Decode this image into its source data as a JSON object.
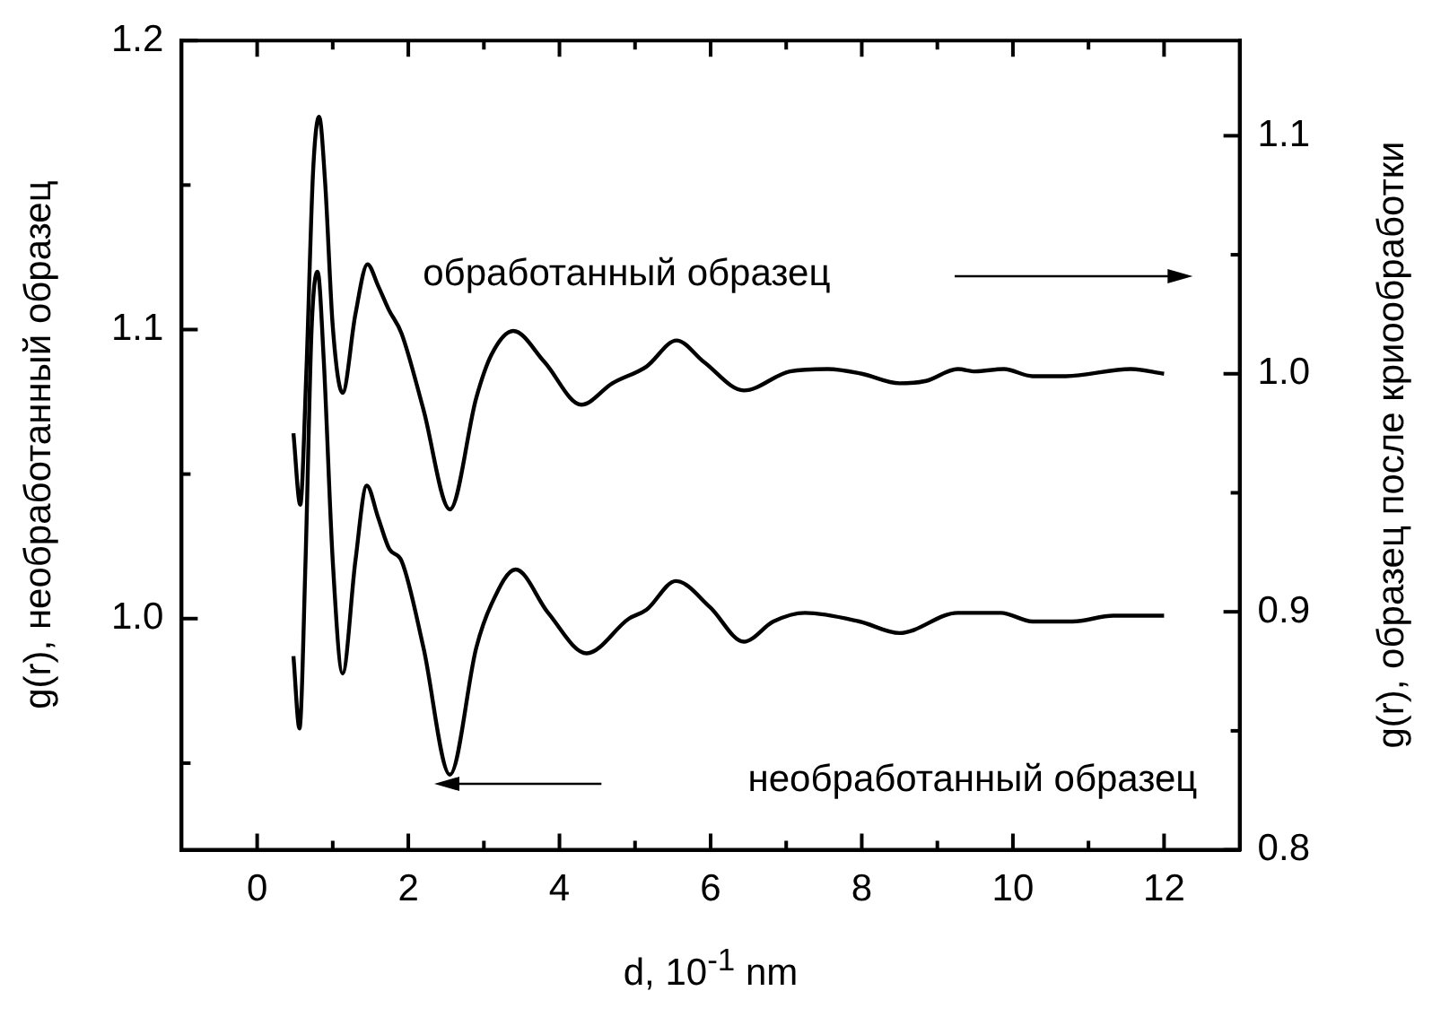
{
  "chart_data": {
    "type": "line",
    "xlabel": "d, 10$^{-1}$ nm",
    "ylabel": "g(r), необработанный образец",
    "y2label": "g(r), образец после криообработки",
    "annotations": [
      "обработанный образец",
      "необработанный образец"
    ],
    "xlim": [
      -1,
      13
    ],
    "xticks": [
      0,
      {
        "value": 1,
        "label": null
      },
      2,
      {
        "value": 3,
        "label": null
      },
      4,
      {
        "value": 5,
        "label": null
      },
      6,
      {
        "value": 7,
        "label": null
      },
      8,
      {
        "value": 9,
        "label": null
      },
      10,
      {
        "value": 11,
        "label": null
      },
      12
    ],
    "ylim": [
      0.92,
      1.2
    ],
    "yticks": [
      {
        "value": 0.95,
        "label": null
      },
      {
        "value": 1,
        "label": "1.0"
      },
      {
        "value": 1.05,
        "label": null
      },
      1.1,
      {
        "value": 1.15,
        "label": null
      },
      1.2
    ],
    "y2lim": [
      0.8,
      1.14
    ],
    "y2ticks": [
      0.8,
      {
        "value": 0.85,
        "label": null
      },
      0.9,
      {
        "value": 0.95,
        "label": null
      },
      {
        "value": 1,
        "label": "1.0"
      },
      {
        "value": 1.05,
        "label": null
      },
      1.1
    ],
    "grid": false,
    "legend": false,
    "marker": "none",
    "line_style": "solid",
    "series": [
      {
        "color": "#000000",
        "axis": "y2",
        "x": [
          0.48,
          0.57,
          0.65,
          0.74,
          0.82,
          0.9,
          1.0,
          1.13,
          1.3,
          1.46,
          1.6,
          1.74,
          1.91,
          2.2,
          2.55,
          2.9,
          3.1,
          3.39,
          3.8,
          4.29,
          4.7,
          5.15,
          5.55,
          5.91,
          6.44,
          7.05,
          7.55,
          8.0,
          8.5,
          8.85,
          9.27,
          9.5,
          9.88,
          10.26,
          10.7,
          11.56,
          12.0
        ],
        "values": [
          0.975,
          0.945,
          1.0,
          1.085,
          1.108,
          1.08,
          1.02,
          0.992,
          1.025,
          1.046,
          1.037,
          1.027,
          1.017,
          0.985,
          0.943,
          0.99,
          1.008,
          1.018,
          1.005,
          0.987,
          0.996,
          1.003,
          1.014,
          1.005,
          0.993,
          1.001,
          1.002,
          1.0,
          0.996,
          0.997,
          1.002,
          1.001,
          1.002,
          0.999,
          0.999,
          1.002,
          1.0
        ]
      },
      {
        "color": "#000000",
        "axis": "y",
        "x": [
          0.48,
          0.56,
          0.64,
          0.72,
          0.8,
          0.88,
          1.0,
          1.13,
          1.3,
          1.45,
          1.6,
          1.75,
          1.91,
          2.2,
          2.55,
          2.9,
          3.1,
          3.42,
          3.85,
          4.36,
          4.92,
          5.15,
          5.54,
          5.99,
          6.44,
          6.83,
          7.25,
          7.97,
          8.5,
          9.27,
          9.84,
          10.26,
          10.79,
          11.33,
          12.0
        ],
        "values": [
          0.987,
          0.962,
          1.02,
          1.1,
          1.12,
          1.09,
          1.02,
          0.981,
          1.02,
          1.046,
          1.035,
          1.024,
          1.02,
          0.99,
          0.946,
          0.99,
          1.005,
          1.017,
          1.002,
          0.988,
          1.0,
          1.003,
          1.013,
          1.004,
          0.992,
          0.999,
          1.002,
          0.999,
          0.995,
          1.002,
          1.002,
          0.999,
          0.999,
          1.001,
          1.001
        ]
      }
    ]
  }
}
